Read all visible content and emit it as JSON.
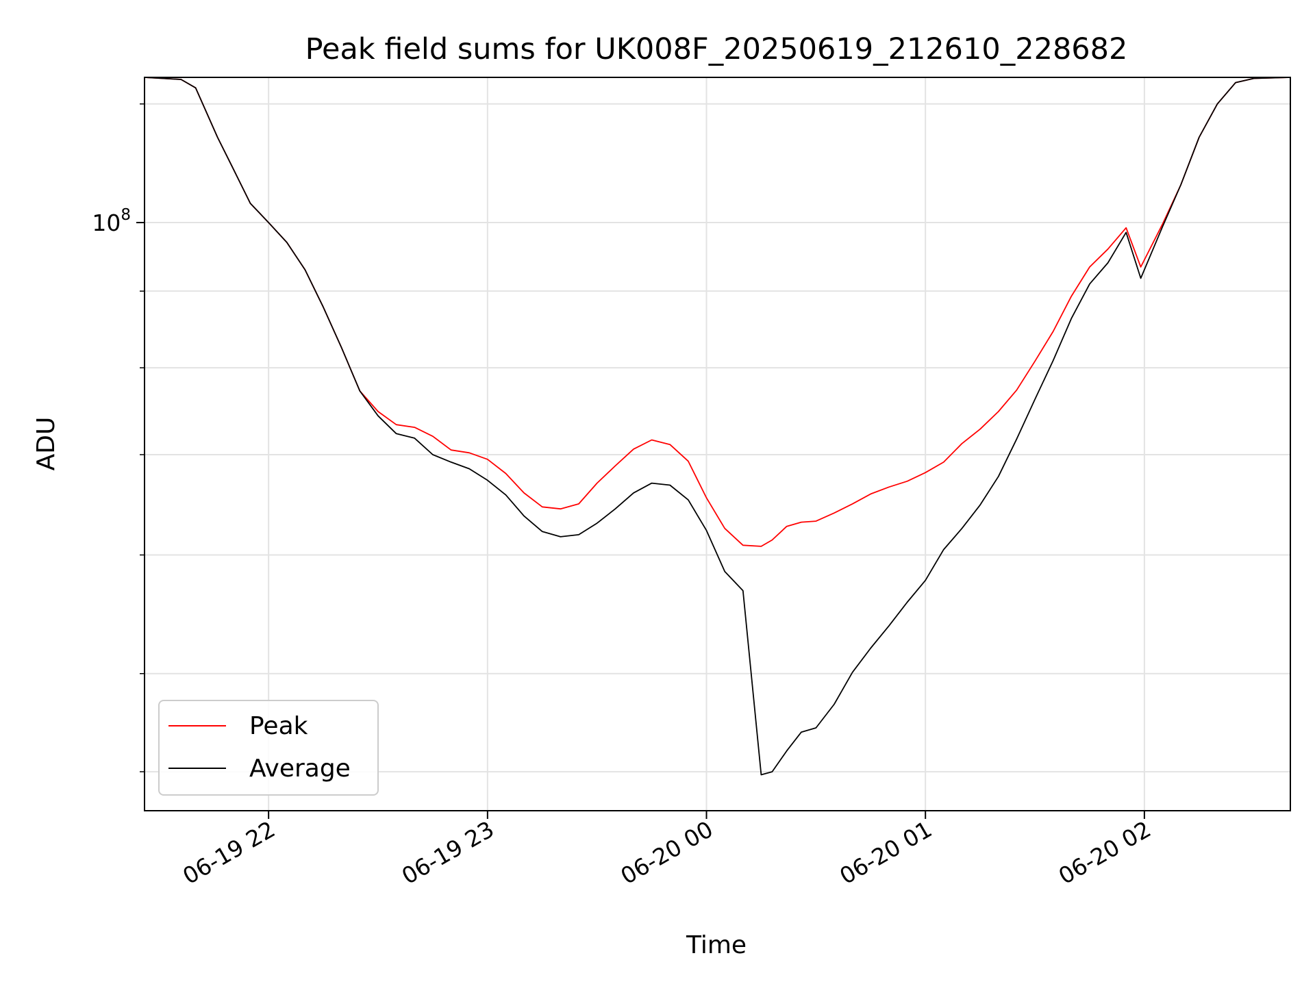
{
  "chart_data": {
    "type": "line",
    "title": "Peak field sums for UK008F_20250619_212610_228682",
    "xlabel": "Time",
    "ylabel": "ADU",
    "y_scale": "log",
    "grid": true,
    "legend_position": "lower-left",
    "xlim": [
      "2025-06-19 21:26",
      "2025-06-20 02:40"
    ],
    "ylim": [
      40500000,
      125000000
    ],
    "x_ticks": [
      {
        "value": "2025-06-19 22:00",
        "label": "06-19 22"
      },
      {
        "value": "2025-06-19 23:00",
        "label": "06-19 23"
      },
      {
        "value": "2025-06-20 00:00",
        "label": "06-20 00"
      },
      {
        "value": "2025-06-20 01:00",
        "label": "06-20 01"
      },
      {
        "value": "2025-06-20 02:00",
        "label": "06-20 02"
      }
    ],
    "y_major_ticks": [
      {
        "value": 100000000,
        "base": "10",
        "exp": "8"
      }
    ],
    "y_minor_ticks": [
      43000000,
      50000000,
      60000000,
      70000000,
      80000000,
      90000000,
      120000000
    ],
    "series": [
      {
        "name": "Peak",
        "color": "#ff0000",
        "x": [
          "2025-06-19 21:26",
          "2025-06-19 21:36",
          "2025-06-19 21:40",
          "2025-06-19 21:46",
          "2025-06-19 21:50",
          "2025-06-19 21:55",
          "2025-06-19 22:00",
          "2025-06-19 22:05",
          "2025-06-19 22:10",
          "2025-06-19 22:15",
          "2025-06-19 22:20",
          "2025-06-19 22:25",
          "2025-06-19 22:30",
          "2025-06-19 22:35",
          "2025-06-19 22:40",
          "2025-06-19 22:45",
          "2025-06-19 22:50",
          "2025-06-19 22:55",
          "2025-06-19 23:00",
          "2025-06-19 23:05",
          "2025-06-19 23:10",
          "2025-06-19 23:15",
          "2025-06-19 23:20",
          "2025-06-19 23:25",
          "2025-06-19 23:30",
          "2025-06-19 23:35",
          "2025-06-19 23:40",
          "2025-06-19 23:45",
          "2025-06-19 23:50",
          "2025-06-19 23:55",
          "2025-06-20 00:00",
          "2025-06-20 00:05",
          "2025-06-20 00:10",
          "2025-06-20 00:15",
          "2025-06-20 00:18",
          "2025-06-20 00:22",
          "2025-06-20 00:26",
          "2025-06-20 00:30",
          "2025-06-20 00:35",
          "2025-06-20 00:40",
          "2025-06-20 00:45",
          "2025-06-20 00:50",
          "2025-06-20 00:55",
          "2025-06-20 01:00",
          "2025-06-20 01:05",
          "2025-06-20 01:10",
          "2025-06-20 01:15",
          "2025-06-20 01:20",
          "2025-06-20 01:25",
          "2025-06-20 01:30",
          "2025-06-20 01:35",
          "2025-06-20 01:40",
          "2025-06-20 01:45",
          "2025-06-20 01:50",
          "2025-06-20 01:55",
          "2025-06-20 01:59",
          "2025-06-20 02:05",
          "2025-06-20 02:10",
          "2025-06-20 02:15",
          "2025-06-20 02:20",
          "2025-06-20 02:25",
          "2025-06-20 02:30",
          "2025-06-20 02:40"
        ],
        "y": [
          125000000,
          124600000,
          123000000,
          114000000,
          109000000,
          103000000,
          100000000,
          97000000,
          93000000,
          87800000,
          82500000,
          77200000,
          74800000,
          73300000,
          73000000,
          72000000,
          70500000,
          70200000,
          69500000,
          68000000,
          66000000,
          64600000,
          64400000,
          64900000,
          67000000,
          68800000,
          70600000,
          71600000,
          71100000,
          69300000,
          65500000,
          62500000,
          60900000,
          60800000,
          61400000,
          62700000,
          63100000,
          63200000,
          64000000,
          64900000,
          65900000,
          66600000,
          67200000,
          68100000,
          69200000,
          71200000,
          72800000,
          74800000,
          77300000,
          80800000,
          84600000,
          89300000,
          93400000,
          96000000,
          99200000,
          93400000,
          99800000,
          106000000,
          114000000,
          120000000,
          124000000,
          124800000,
          125000000
        ]
      },
      {
        "name": "Average",
        "color": "#000000",
        "x": [
          "2025-06-19 21:26",
          "2025-06-19 21:36",
          "2025-06-19 21:40",
          "2025-06-19 21:46",
          "2025-06-19 21:50",
          "2025-06-19 21:55",
          "2025-06-19 22:00",
          "2025-06-19 22:05",
          "2025-06-19 22:10",
          "2025-06-19 22:15",
          "2025-06-19 22:20",
          "2025-06-19 22:25",
          "2025-06-19 22:30",
          "2025-06-19 22:35",
          "2025-06-19 22:40",
          "2025-06-19 22:45",
          "2025-06-19 22:50",
          "2025-06-19 22:55",
          "2025-06-19 23:00",
          "2025-06-19 23:05",
          "2025-06-19 23:10",
          "2025-06-19 23:15",
          "2025-06-19 23:20",
          "2025-06-19 23:25",
          "2025-06-19 23:30",
          "2025-06-19 23:35",
          "2025-06-19 23:40",
          "2025-06-19 23:45",
          "2025-06-19 23:50",
          "2025-06-19 23:55",
          "2025-06-20 00:00",
          "2025-06-20 00:05",
          "2025-06-20 00:10",
          "2025-06-20 00:15",
          "2025-06-20 00:18",
          "2025-06-20 00:22",
          "2025-06-20 00:26",
          "2025-06-20 00:30",
          "2025-06-20 00:35",
          "2025-06-20 00:40",
          "2025-06-20 00:45",
          "2025-06-20 00:50",
          "2025-06-20 00:55",
          "2025-06-20 01:00",
          "2025-06-20 01:05",
          "2025-06-20 01:10",
          "2025-06-20 01:15",
          "2025-06-20 01:20",
          "2025-06-20 01:25",
          "2025-06-20 01:30",
          "2025-06-20 01:35",
          "2025-06-20 01:40",
          "2025-06-20 01:45",
          "2025-06-20 01:50",
          "2025-06-20 01:55",
          "2025-06-20 01:59",
          "2025-06-20 02:05",
          "2025-06-20 02:10",
          "2025-06-20 02:15",
          "2025-06-20 02:20",
          "2025-06-20 02:25",
          "2025-06-20 02:30",
          "2025-06-20 02:40"
        ],
        "y": [
          125000000,
          124600000,
          123000000,
          114000000,
          109000000,
          103000000,
          100000000,
          97000000,
          93000000,
          87800000,
          82500000,
          77200000,
          74300000,
          72300000,
          71800000,
          70000000,
          69200000,
          68500000,
          67300000,
          65800000,
          63700000,
          62200000,
          61700000,
          61900000,
          63000000,
          64400000,
          66000000,
          67000000,
          66800000,
          65300000,
          62300000,
          58500000,
          56800000,
          42800000,
          43000000,
          44400000,
          45700000,
          46000000,
          47700000,
          50100000,
          52000000,
          53800000,
          55800000,
          57700000,
          60500000,
          62500000,
          64800000,
          67700000,
          71700000,
          76200000,
          80900000,
          86300000,
          91000000,
          94000000,
          98500000,
          91800000,
          99400000,
          106000000,
          114000000,
          120000000,
          124000000,
          124800000,
          125000000
        ]
      }
    ]
  }
}
